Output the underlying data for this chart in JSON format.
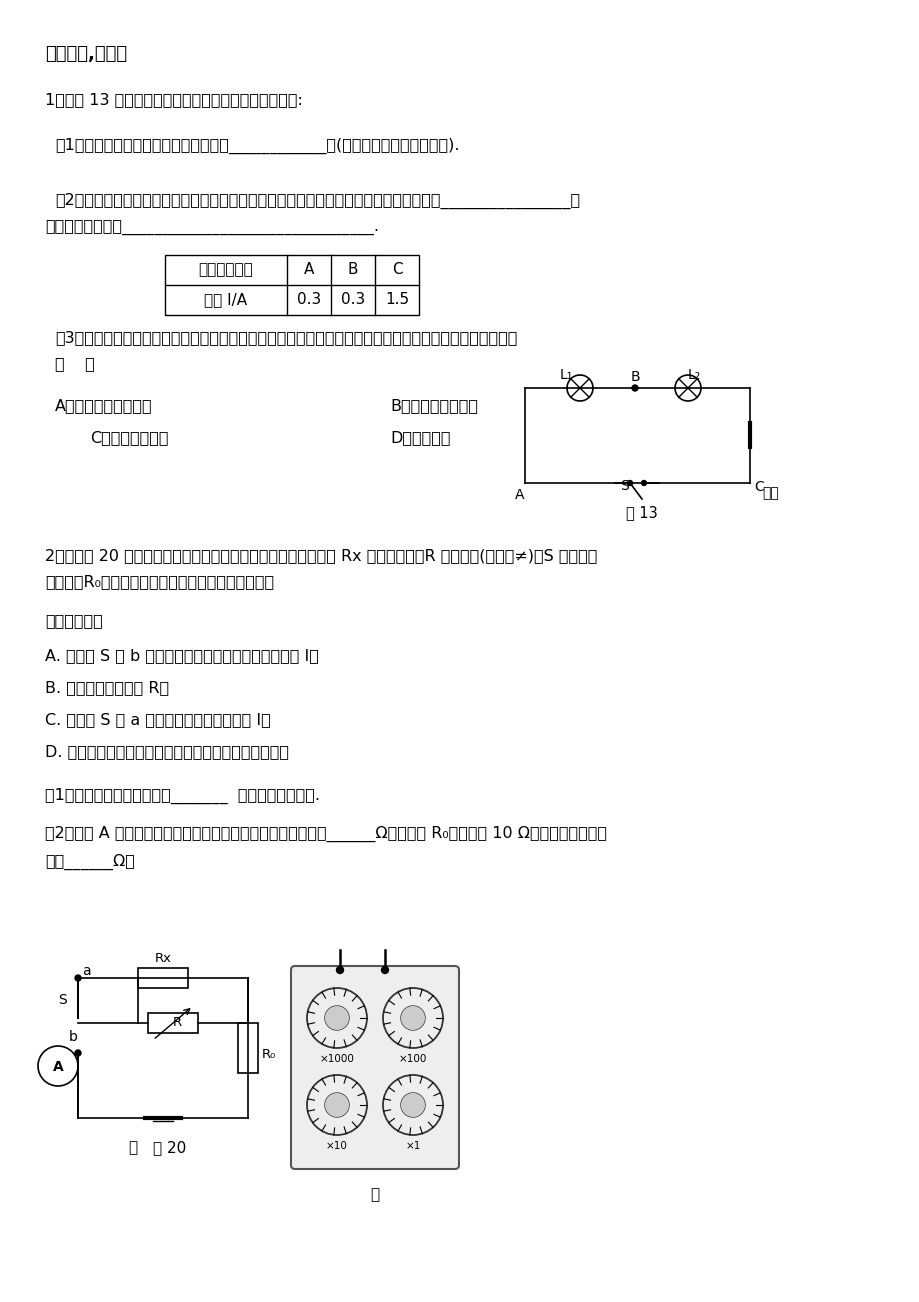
{
  "bg_color": "#ffffff",
  "page_width": 9.2,
  "page_height": 13.02,
  "title": "一、实验,探究题",
  "q1_intro": "1、如图 13 是「探究串联电路电流特点」的实验电路图:",
  "q1_1": "（1）实验中，选择两个小灯泡的规格是____________的(填「相同」或「不相同」).",
  "q1_2a": "（2）下表是某同学实验中的二组数据；指出上述表格所记录的数据中，明显错误的数值是________________，",
  "q1_2b": "造成错误的原因是_______________________________.",
  "table_headers": [
    "电流表的位置",
    "A",
    "B",
    "C"
  ],
  "table_row1": [
    "电流 I/A",
    "0.3",
    "0.3",
    "1.5"
  ],
  "q1_3a": "（3）实验中某同学发现两个串联的小灯泡中，一个发光，一个不发光，造成其中一个小灯泡不发光的原因是",
  "q1_3b": "（    ）",
  "q1_optA": "A．通过灯泡的电流小",
  "q1_optB": "B．灯泡的灯丝断了",
  "q1_optC": "C．灯丝的电阴小",
  "q1_optD": "D．小灯泡靠",
  "q1_fig_label": "图 13",
  "q2_intro": "2、用如图 20 甲所示的电路可以测量一个未知电阴的阴值，其中 Rx 为待测电阴，R 为电阴笱(符号为≠)，S 为单刀双",
  "q2_intro2": "掟开关，R₀为定值电阴．某同学用该电路进行实验，",
  "q2_steps_title": "主要步骤有：",
  "q2_stepA": "A. 把开关 S 接 b 点，调节电阴笱，使电流表的示数为 I；",
  "q2_stepB": "B. 读出电阴笱的示数 R；",
  "q2_stepC": "C. 把开关 S 接 a 点，读出电流表的示数为 I；",
  "q2_stepD": "D. 根据电路图，连接实物，将电阴笱的阴值调至最大；",
  "q2_sub1": "（1）上述步骤的合理顺序是_______  （只需填写序号）.",
  "q2_sub2a": "（2）步骤 A 中电阴笱调节好后示数如图乙所示，则它的示数为______Ω．若已知 R₀的阴值为 10 Ω，则待测电阴的阴",
  "q2_sub2b": "值为______Ω．",
  "q2_fig_label_a": "甲",
  "q2_fig_label_20": "图 20",
  "q2_fig_label_z": "乙"
}
